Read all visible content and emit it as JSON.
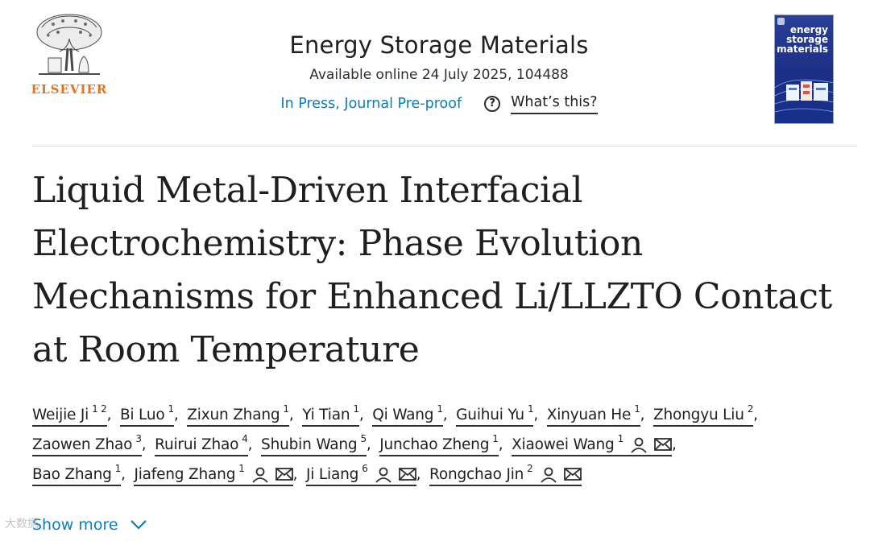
{
  "publisher": {
    "name": "ELSEVIER"
  },
  "journal": {
    "name": "Energy Storage Materials",
    "availability": "Available online 24 July 2025, 104488",
    "status": "In Press, Journal Pre-proof",
    "help_label": "What’s this?",
    "cover_title": [
      "energy",
      "storage",
      "materials"
    ]
  },
  "article": {
    "title": "Liquid Metal-Driven Interfacial Electrochemistry: Phase Evolution Mechanisms for Enhanced Li/LLZTO Contact at Room Temperature"
  },
  "authors": [
    {
      "name": "Weijie Ji",
      "aff": "1 2"
    },
    {
      "name": "Bi Luo",
      "aff": "1"
    },
    {
      "name": "Zixun Zhang",
      "aff": "1"
    },
    {
      "name": "Yi Tian",
      "aff": "1"
    },
    {
      "name": "Qi Wang",
      "aff": "1"
    },
    {
      "name": "Guihui Yu",
      "aff": "1"
    },
    {
      "name": "Xinyuan He",
      "aff": "1"
    },
    {
      "name": "Zhongyu Liu",
      "aff": "2"
    },
    {
      "name": "Zaowen Zhao",
      "aff": "3"
    },
    {
      "name": "Ruirui Zhao",
      "aff": "4"
    },
    {
      "name": "Shubin Wang",
      "aff": "5"
    },
    {
      "name": "Junchao Zheng",
      "aff": "1"
    },
    {
      "name": "Xiaowei Wang",
      "aff": "1"
    },
    {
      "name": "Bao Zhang",
      "aff": "1"
    },
    {
      "name": "Jiafeng Zhang",
      "aff": "1"
    },
    {
      "name": "Ji Liang",
      "aff": "6"
    },
    {
      "name": "Rongchao Jin",
      "aff": "2"
    }
  ],
  "show_more_label": "Show more",
  "watermark": "大数据"
}
